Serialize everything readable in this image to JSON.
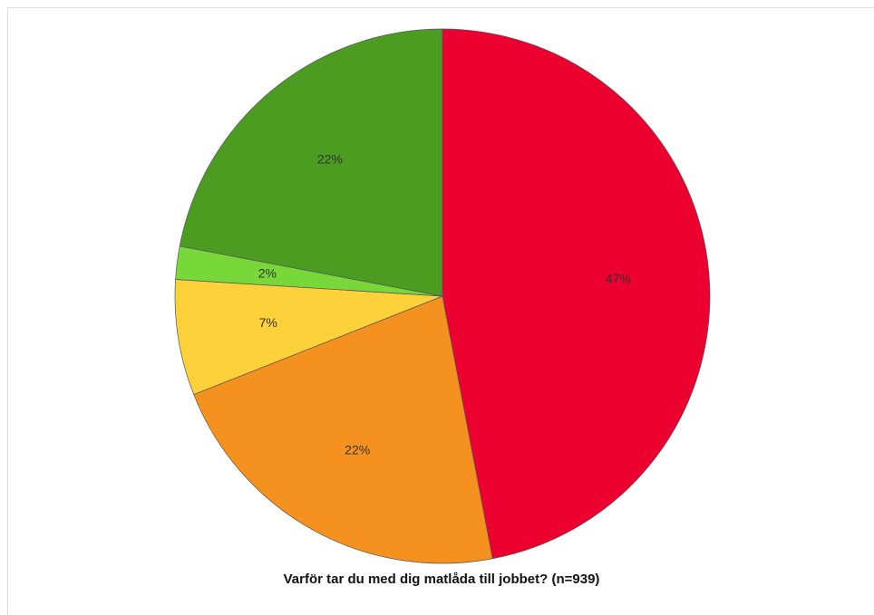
{
  "chart_data": {
    "type": "pie",
    "title": "Varför tar du med dig matlåda till jobbet? (n=939)",
    "values": [
      47,
      22,
      7,
      2,
      22
    ],
    "value_labels": [
      "47%",
      "22%",
      "7%",
      "2%",
      "22%"
    ],
    "colors": [
      "#ec0030",
      "#f5911e",
      "#fdd13a",
      "#78d83a",
      "#4b9c21"
    ]
  }
}
